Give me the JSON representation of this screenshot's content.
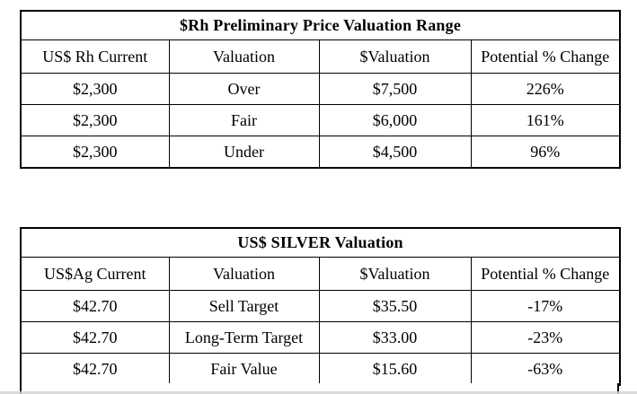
{
  "page": {
    "background_color": "#ffffff",
    "text_color": "#000000",
    "border_color": "#000000"
  },
  "tables": [
    {
      "title": "$Rh Preliminary Price Valuation Range",
      "headers": [
        "US$ Rh Current",
        "Valuation",
        "$Valuation",
        "Potential % Change"
      ],
      "rows": [
        [
          "$2,300",
          "Over",
          "$7,500",
          "226%"
        ],
        [
          "$2,300",
          "Fair",
          "$6,000",
          "161%"
        ],
        [
          "$2,300",
          "Under",
          "$4,500",
          "96%"
        ]
      ]
    },
    {
      "title": "US$ SILVER Valuation",
      "headers": [
        "US$Ag Current",
        "Valuation",
        "$Valuation",
        "Potential % Change"
      ],
      "rows": [
        [
          "$42.70",
          "Sell Target",
          "$35.50",
          "-17%"
        ],
        [
          "$42.70",
          "Long-Term Target",
          "$33.00",
          "-23%"
        ],
        [
          "$42.70",
          "Fair Value",
          "$15.60",
          "-63%"
        ]
      ]
    }
  ]
}
